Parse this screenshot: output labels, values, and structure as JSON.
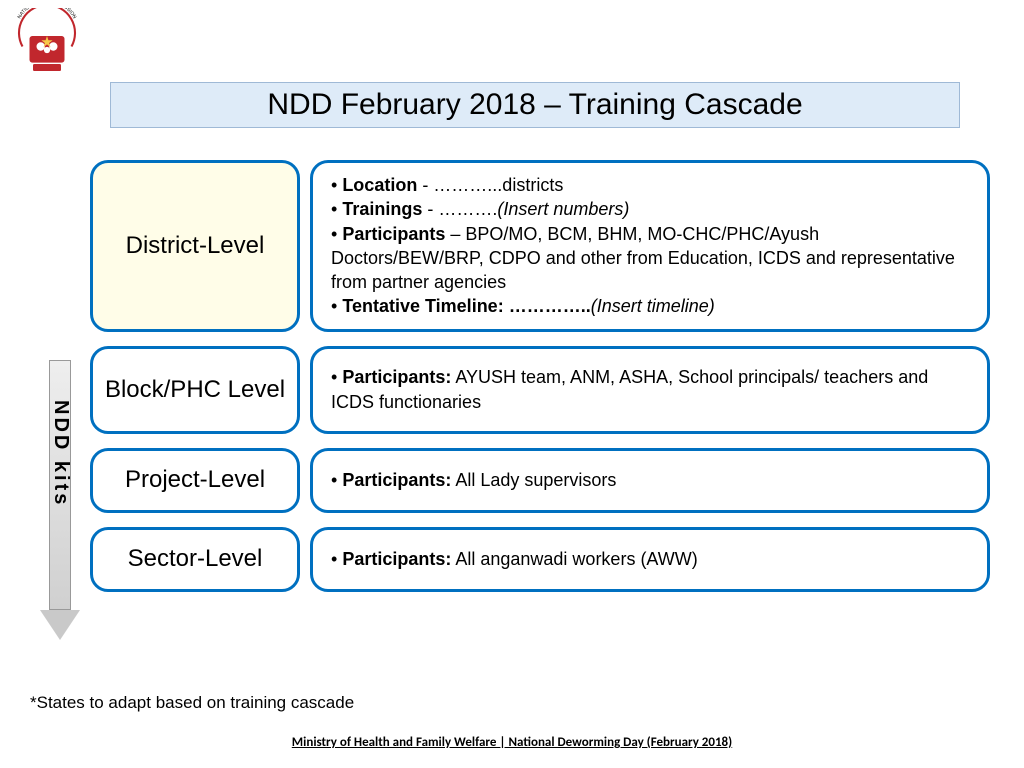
{
  "colors": {
    "title_bg": "#deebf8",
    "title_border": "#9fb9d6",
    "box_border": "#0070c0",
    "highlight_bg": "#fffde8",
    "box_bg": "#ffffff",
    "arrow_fill_top": "#eeeeee",
    "arrow_fill_bottom": "#d0d0d0",
    "arrow_head": "#c9c9c9"
  },
  "logo": {
    "alt": "National Health Mission logo",
    "arc_text": "NATIONAL HEALTH MISSION",
    "primary": "#c1272d",
    "star": "#f7c948"
  },
  "title": "NDD February 2018 – Training Cascade",
  "arrow_label": "NDD kits",
  "rows": [
    {
      "label": "District-Level",
      "highlight": true,
      "details_html": "<li><b>Location</b> - ………...districts</li><li><b>Trainings</b> - ……….<i>(Insert numbers)</i></li><li><b>Participants</b> – BPO/MO, BCM, BHM, MO-CHC/PHC/Ayush Doctors/BEW/BRP, CDPO and other from Education, ICDS and representative from partner agencies</li><li><b>Tentative Timeline: …………..</b><i>(Insert timeline)</i></li>"
    },
    {
      "label": "Block/PHC Level",
      "highlight": false,
      "details_html": "<li><b>Participants:</b> AYUSH team, ANM, ASHA, School principals/ teachers and ICDS functionaries</li>"
    },
    {
      "label": "Project-Level",
      "highlight": false,
      "details_html": "<li><b>Participants:</b> All Lady supervisors</li>"
    },
    {
      "label": "Sector-Level",
      "highlight": false,
      "details_html": "<li><b>Participants:</b> All anganwadi workers (AWW)</li>"
    }
  ],
  "footnote": "*States to adapt based on training cascade",
  "footer": "Ministry of Health and Family Welfare | National Deworming Day (February 2018)"
}
